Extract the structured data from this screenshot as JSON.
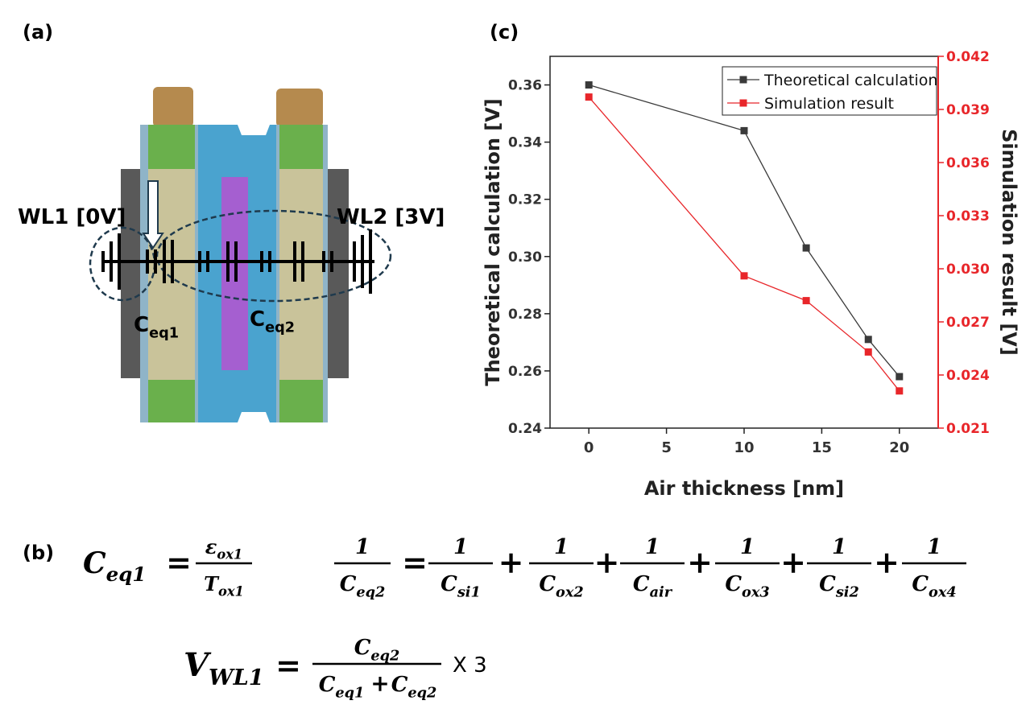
{
  "panel_labels": [
    "(a)",
    "(b)",
    "(c)"
  ],
  "diagram": {
    "wl1": "WL1 [0V]",
    "wl2": "WL2 [3V]",
    "ceq1": {
      "base": "C",
      "sub": "eq1"
    },
    "ceq2": {
      "base": "C",
      "sub": "eq2"
    }
  },
  "equations": {
    "equals": "=",
    "plus": "+",
    "ceq1": {
      "lhs": {
        "base": "C",
        "sub": "eq1"
      },
      "num": {
        "base": "ε",
        "sub": "ox1"
      },
      "den": {
        "base": "T",
        "sub": "ox1"
      }
    },
    "ceq2": {
      "lhs_num": "1",
      "lhs_den": {
        "base": "C",
        "sub": "eq2"
      },
      "terms": [
        {
          "num": "1",
          "den": {
            "base": "C",
            "sub": "si1"
          }
        },
        {
          "num": "1",
          "den": {
            "base": "C",
            "sub": "ox2"
          }
        },
        {
          "num": "1",
          "den": {
            "base": "C",
            "sub": "air"
          }
        },
        {
          "num": "1",
          "den": {
            "base": "C",
            "sub": "ox3"
          }
        },
        {
          "num": "1",
          "den": {
            "base": "C",
            "sub": "si2"
          }
        },
        {
          "num": "1",
          "den": {
            "base": "C",
            "sub": "ox4"
          }
        }
      ]
    },
    "vwl1": {
      "lhs": {
        "base": "V",
        "sub": "WL1"
      },
      "num": {
        "base": "C",
        "sub": "eq2"
      },
      "den": [
        {
          "base": "C",
          "sub": "eq1"
        },
        {
          "base": "C",
          "sub": "eq2"
        }
      ],
      "factor": "X 3"
    }
  },
  "chart_data": {
    "type": "line",
    "xlabel": "Air thickness [nm]",
    "ylabel": "Theoretical calculation [V]",
    "y2label": "Simulation result [V]",
    "x": [
      0,
      10,
      14,
      18,
      20
    ],
    "xlim": [
      -2.5,
      22.5
    ],
    "xticks": [
      0,
      5,
      10,
      15,
      20
    ],
    "ylim": [
      0.24,
      0.37
    ],
    "yticks": [
      0.24,
      0.26,
      0.28,
      {
        "value": 0.3,
        "label": "0.30"
      },
      0.32,
      0.34,
      0.36
    ],
    "y2lim": [
      0.021,
      0.042
    ],
    "y2ticks": [
      0.021,
      0.024,
      0.027,
      {
        "value": 0.03,
        "label": "0.030"
      },
      0.033,
      0.036,
      0.039,
      0.042
    ],
    "legend": "upper right",
    "series": [
      {
        "name": "Theoretical calculation",
        "color": "#3a3a3a",
        "values": [
          0.36,
          0.344,
          0.303,
          0.271,
          0.258
        ]
      },
      {
        "name": "Simulation result",
        "color": "#e8262a",
        "axis": "y2",
        "values": [
          0.0397,
          0.0296,
          0.0282,
          0.0253,
          0.0231
        ]
      }
    ]
  }
}
